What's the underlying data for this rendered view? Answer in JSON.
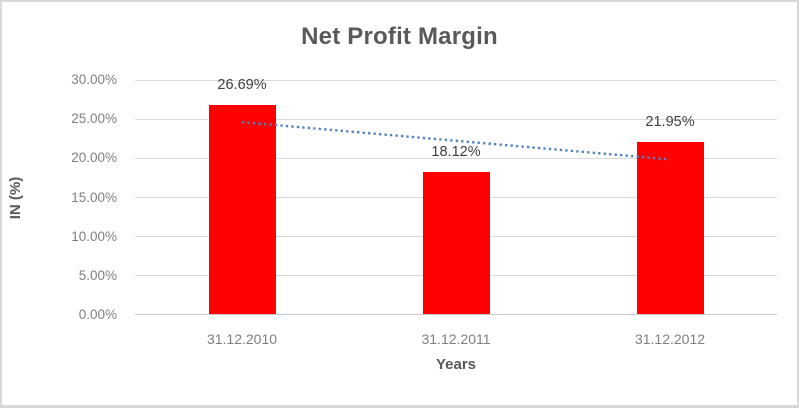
{
  "window": {
    "background": "#ffffff",
    "border_color": "#d8d8d8"
  },
  "chart_data": {
    "type": "bar",
    "title": "Net Profit Margin",
    "categories": [
      "31.12.2010",
      "31.12.2011",
      "31.12.2012"
    ],
    "values": [
      26.69,
      18.12,
      21.95
    ],
    "data_labels": [
      "26.69%",
      "18.12%",
      "21.95%"
    ],
    "xlabel": "Years",
    "ylabel": "IN (%)",
    "ylim": [
      0,
      30
    ],
    "ytick_step": 5,
    "ytick_labels": [
      "0.00%",
      "5.00%",
      "10.00%",
      "15.00%",
      "20.00%",
      "25.00%",
      "30.00%"
    ],
    "grid": true,
    "legend": false,
    "colors": {
      "bar": "#ff0000",
      "title": "#595959",
      "axis_title": "#595959",
      "tick_label": "#7f7f7f",
      "data_label": "#404040",
      "gridline": "#d9d9d9",
      "axis_line": "#c9c9c9"
    },
    "trendline": {
      "type": "linear",
      "line_style": "dotted",
      "color": "#4e81bd",
      "start_value": 24.62,
      "end_value": 19.86
    }
  }
}
